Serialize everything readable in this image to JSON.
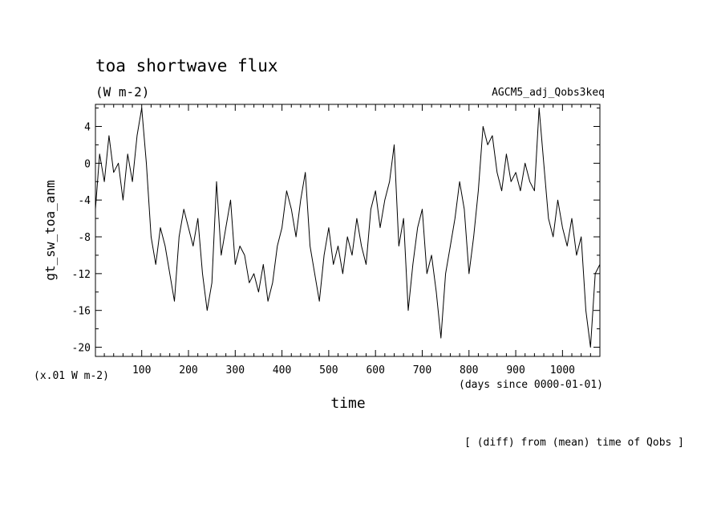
{
  "chart_data": {
    "type": "line",
    "title": "toa shortwave flux",
    "units": "(W m-2)",
    "experiment": "AGCM5_adj_Qobs3keq",
    "ylabel": "gt_sw_toa_anm",
    "xlabel": "time",
    "y_scale_note": "(x.01 W m-2)",
    "x_units_note": "(days since 0000-01-01)",
    "footnote": "[ (diff) from (mean) time of Qobs ]",
    "xlim": [
      1,
      1080
    ],
    "ylim": [
      -21,
      6.4
    ],
    "x_ticks": [
      100,
      200,
      300,
      400,
      500,
      600,
      700,
      800,
      900,
      1000
    ],
    "x_tick_labels": [
      "100",
      "200",
      "300",
      "400",
      "500",
      "600",
      "700",
      "800",
      "900",
      "1000"
    ],
    "y_ticks": [
      4,
      0,
      -4,
      -8,
      -12,
      -16,
      -20
    ],
    "y_tick_labels": [
      "4",
      "0",
      "-4",
      "-8",
      "-12",
      "-16",
      "-20"
    ],
    "series": [
      {
        "color": "#000000",
        "x": [
          1,
          10,
          20,
          30,
          40,
          50,
          60,
          70,
          80,
          90,
          100,
          110,
          120,
          130,
          140,
          150,
          160,
          170,
          180,
          190,
          200,
          210,
          220,
          230,
          240,
          250,
          260,
          270,
          280,
          290,
          300,
          310,
          320,
          330,
          340,
          350,
          360,
          370,
          380,
          390,
          400,
          410,
          420,
          430,
          440,
          450,
          460,
          470,
          480,
          490,
          500,
          510,
          520,
          530,
          540,
          550,
          560,
          570,
          580,
          590,
          600,
          610,
          620,
          630,
          640,
          650,
          660,
          670,
          680,
          690,
          700,
          710,
          720,
          730,
          740,
          750,
          760,
          770,
          780,
          790,
          800,
          810,
          820,
          830,
          840,
          850,
          860,
          870,
          880,
          890,
          900,
          910,
          920,
          930,
          940,
          950,
          960,
          970,
          980,
          990,
          1000,
          1010,
          1020,
          1030,
          1040,
          1050,
          1060,
          1070,
          1080
        ],
        "y": [
          -5,
          1,
          -2,
          3,
          -1,
          0,
          -4,
          1,
          -2,
          3,
          6,
          0,
          -8,
          -11,
          -7,
          -9,
          -12,
          -15,
          -8,
          -5,
          -7,
          -9,
          -6,
          -12,
          -16,
          -13,
          -2,
          -10,
          -7,
          -4,
          -11,
          -9,
          -10,
          -13,
          -12,
          -14,
          -11,
          -15,
          -13,
          -9,
          -7,
          -3,
          -5,
          -8,
          -4,
          -1,
          -9,
          -12,
          -15,
          -10,
          -7,
          -11,
          -9,
          -12,
          -8,
          -10,
          -6,
          -9,
          -11,
          -5,
          -3,
          -7,
          -4,
          -2,
          2,
          -9,
          -6,
          -16,
          -11,
          -7,
          -5,
          -12,
          -10,
          -14,
          -19,
          -12,
          -9,
          -6,
          -2,
          -5,
          -12,
          -8,
          -3,
          4,
          2,
          3,
          -1,
          -3,
          1,
          -2,
          -1,
          -3,
          0,
          -2,
          -3,
          6,
          0,
          -6,
          -8,
          -4,
          -7,
          -9,
          -6,
          -10,
          -8,
          -16,
          -20,
          -12,
          -11
        ]
      }
    ]
  }
}
